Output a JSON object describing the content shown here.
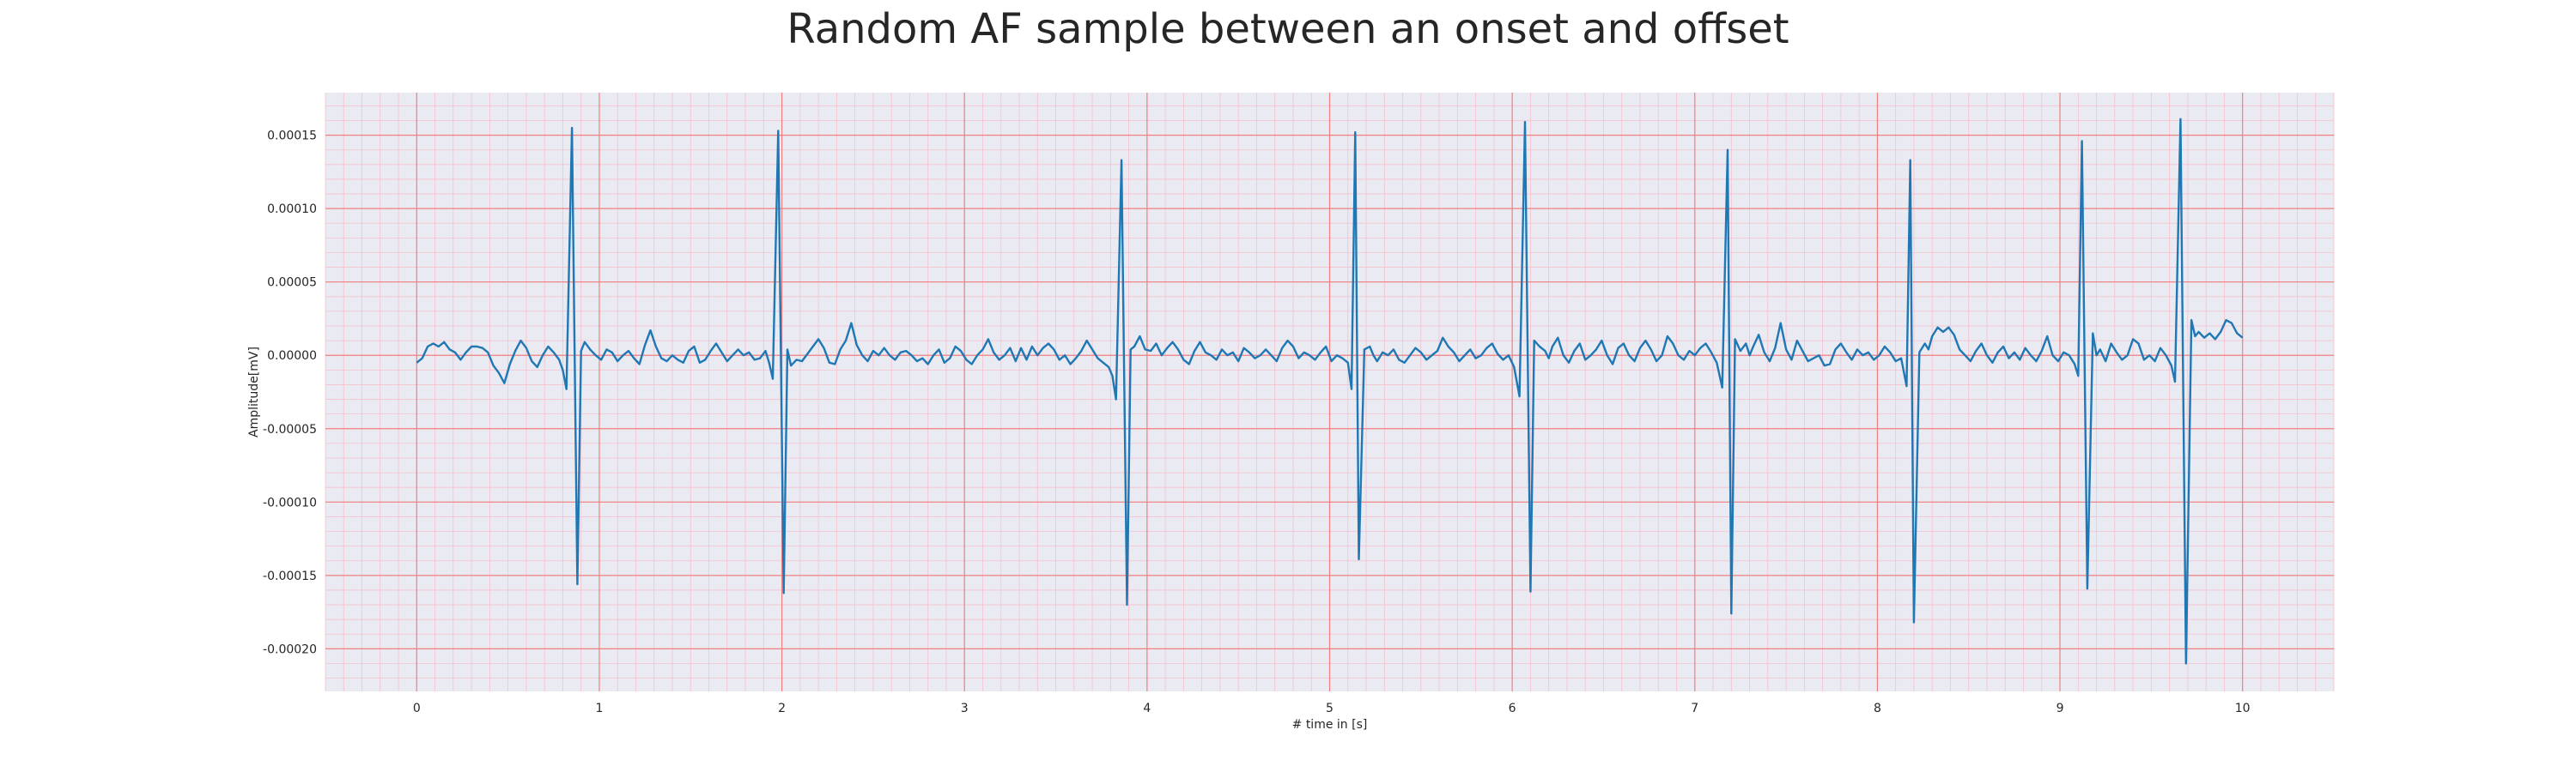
{
  "chart_data": {
    "type": "line",
    "title": "Random AF sample between an onset and offset",
    "xlabel": "# time in [s]",
    "ylabel": "Amplitude[mV]",
    "xlim": [
      -0.5,
      10.5
    ],
    "ylim": [
      -0.000229,
      0.000179
    ],
    "xticks": [
      0,
      1,
      2,
      3,
      4,
      5,
      6,
      7,
      8,
      9,
      10
    ],
    "xtick_labels": [
      "0",
      "1",
      "2",
      "3",
      "4",
      "5",
      "6",
      "7",
      "8",
      "9",
      "10"
    ],
    "yticks": [
      0.00015,
      0.0001,
      5e-05,
      0.0,
      -5e-05,
      -0.0001,
      -0.00015,
      -0.0002
    ],
    "ytick_labels": [
      "0.00015",
      "0.00010",
      "0.00005",
      "0.00000",
      "-0.00005",
      "-0.00010",
      "-0.00015",
      "-0.00020"
    ],
    "grid": true,
    "grid_major_color": "#f08080",
    "grid_minor_color": "#f6c0cc",
    "background": "#eaeaf2",
    "series_color": "#1f77b4",
    "beats": [
      {
        "t": 0.85,
        "peak": 0.000155,
        "trough": -0.000156
      },
      {
        "t": 1.98,
        "peak": 0.000153,
        "trough": -0.000162
      },
      {
        "t": 3.86,
        "peak": 0.000133,
        "trough": -0.00017
      },
      {
        "t": 5.19,
        "peak": 0.000152,
        "trough": -0.000139
      },
      {
        "t": 6.15,
        "peak": 0.000159,
        "trough": -0.000161
      },
      {
        "t": 7.25,
        "peak": 0.00014,
        "trough": -0.000176
      },
      {
        "t": 8.23,
        "peak": 0.000133,
        "trough": -0.000182
      },
      {
        "t": 9.15,
        "peak": 0.000146,
        "trough": -0.000159
      },
      {
        "t": 9.69,
        "peak": 0.000161,
        "trough": -0.00021
      }
    ],
    "series": [
      {
        "x": [
          0.0,
          0.03,
          0.06,
          0.09,
          0.12,
          0.15,
          0.18,
          0.21,
          0.24,
          0.27,
          0.3,
          0.33,
          0.36,
          0.39,
          0.42,
          0.45,
          0.48,
          0.51,
          0.54,
          0.57,
          0.6,
          0.63,
          0.66,
          0.69,
          0.72,
          0.75,
          0.78,
          0.8,
          0.82,
          0.85,
          0.88,
          0.9,
          0.92,
          0.95,
          0.98,
          1.01,
          1.04,
          1.07,
          1.1,
          1.13,
          1.16,
          1.19,
          1.22,
          1.25,
          1.28,
          1.31,
          1.34,
          1.37,
          1.4,
          1.43,
          1.46,
          1.49,
          1.52,
          1.55,
          1.58,
          1.61,
          1.64,
          1.67,
          1.7,
          1.73,
          1.76,
          1.79,
          1.82,
          1.85,
          1.88,
          1.91,
          1.93,
          1.95,
          1.98,
          2.01,
          2.03,
          2.05,
          2.08,
          2.11,
          2.14,
          2.17,
          2.2,
          2.23,
          2.26,
          2.29,
          2.32,
          2.35,
          2.38,
          2.41,
          2.44,
          2.47,
          2.5,
          2.53,
          2.56,
          2.59,
          2.62,
          2.65,
          2.68,
          2.71,
          2.74,
          2.77,
          2.8,
          2.83,
          2.86,
          2.89,
          2.92,
          2.95,
          2.98,
          3.01,
          3.04,
          3.07,
          3.1,
          3.13,
          3.16,
          3.19,
          3.22,
          3.25,
          3.28,
          3.31,
          3.34,
          3.37,
          3.4,
          3.43,
          3.46,
          3.49,
          3.52,
          3.55,
          3.58,
          3.61,
          3.64,
          3.67,
          3.7,
          3.73,
          3.76,
          3.79,
          3.81,
          3.83,
          3.86,
          3.89,
          3.91,
          3.93,
          3.96,
          3.99,
          4.02,
          4.05,
          4.08,
          4.11,
          4.14,
          4.17,
          4.2,
          4.23,
          4.26,
          4.29,
          4.32,
          4.35,
          4.38,
          4.41,
          4.44,
          4.47,
          4.5,
          4.53,
          4.56,
          4.59,
          4.62,
          4.65,
          4.68,
          4.71,
          4.74,
          4.77,
          4.8,
          4.83,
          4.86,
          4.89,
          4.92,
          4.95,
          4.98,
          5.01,
          5.04,
          5.07,
          5.1,
          5.12,
          5.14,
          5.16,
          5.19,
          5.22,
          5.24,
          5.26,
          5.29,
          5.32,
          5.35,
          5.38,
          5.41,
          5.44,
          5.47,
          5.5,
          5.53,
          5.56,
          5.59,
          5.62,
          5.65,
          5.68,
          5.71,
          5.74,
          5.77,
          5.8,
          5.83,
          5.86,
          5.89,
          5.92,
          5.95,
          5.98,
          6.01,
          6.04,
          6.07,
          6.1,
          6.12,
          6.15,
          6.18,
          6.2,
          6.22,
          6.25,
          6.28,
          6.31,
          6.34,
          6.37,
          6.4,
          6.43,
          6.46,
          6.49,
          6.52,
          6.55,
          6.58,
          6.61,
          6.64,
          6.67,
          6.7,
          6.73,
          6.76,
          6.79,
          6.82,
          6.85,
          6.88,
          6.91,
          6.94,
          6.97,
          7.0,
          7.03,
          7.06,
          7.09,
          7.12,
          7.15,
          7.18,
          7.2,
          7.22,
          7.25,
          7.28,
          7.3,
          7.32,
          7.35,
          7.38,
          7.41,
          7.44,
          7.47,
          7.5,
          7.53,
          7.56,
          7.59,
          7.62,
          7.65,
          7.68,
          7.71,
          7.74,
          7.77,
          7.8,
          7.83,
          7.86,
          7.89,
          7.92,
          7.95,
          7.98,
          8.01,
          8.04,
          8.07,
          8.1,
          8.13,
          8.16,
          8.18,
          8.2,
          8.23,
          8.26,
          8.28,
          8.3,
          8.33,
          8.36,
          8.39,
          8.42,
          8.45,
          8.48,
          8.51,
          8.54,
          8.57,
          8.6,
          8.63,
          8.66,
          8.69,
          8.72,
          8.75,
          8.78,
          8.81,
          8.84,
          8.87,
          8.9,
          8.93,
          8.96,
          8.99,
          9.02,
          9.05,
          9.08,
          9.1,
          9.12,
          9.15,
          9.18,
          9.2,
          9.22,
          9.25,
          9.28,
          9.31,
          9.34,
          9.37,
          9.4,
          9.43,
          9.46,
          9.49,
          9.52,
          9.55,
          9.58,
          9.61,
          9.63,
          9.66,
          9.69,
          9.72,
          9.74,
          9.76,
          9.79,
          9.82,
          9.85,
          9.88,
          9.91,
          9.94,
          9.97,
          10.0
        ],
        "y": [
          -5e-06,
          -2e-06,
          6e-06,
          8e-06,
          6e-06,
          9e-06,
          4e-06,
          2e-06,
          -3e-06,
          2e-06,
          6e-06,
          6e-06,
          5e-06,
          2e-06,
          -7e-06,
          -1.2e-05,
          -1.9e-05,
          -6e-06,
          3e-06,
          1e-05,
          5e-06,
          -4e-06,
          -8e-06,
          0.0,
          6e-06,
          2e-06,
          -3e-06,
          -1e-05,
          -2.3e-05,
          0.000155,
          -0.000156,
          3e-06,
          9e-06,
          4e-06,
          0.0,
          -3e-06,
          4e-06,
          2e-06,
          -4e-06,
          0.0,
          3e-06,
          -2e-06,
          -6e-06,
          7e-06,
          1.7e-05,
          6e-06,
          -2e-06,
          -4e-06,
          0.0,
          -3e-06,
          -5e-06,
          3e-06,
          6e-06,
          -5e-06,
          -3e-06,
          3e-06,
          8e-06,
          2e-06,
          -4e-06,
          0.0,
          4e-06,
          0.0,
          2e-06,
          -3e-06,
          -2e-06,
          3e-06,
          -5e-06,
          -1.6e-05,
          0.000153,
          -0.000162,
          4e-06,
          -7e-06,
          -3e-06,
          -4e-06,
          1e-06,
          6e-06,
          1.1e-05,
          5e-06,
          -5e-06,
          -6e-06,
          4e-06,
          1e-05,
          2.2e-05,
          7e-06,
          0.0,
          -4e-06,
          3e-06,
          0.0,
          5e-06,
          0.0,
          -3e-06,
          2e-06,
          3e-06,
          0.0,
          -4e-06,
          -2e-06,
          -6e-06,
          0.0,
          4e-06,
          -5e-06,
          -2e-06,
          6e-06,
          3e-06,
          -3e-06,
          -6e-06,
          0.0,
          4e-06,
          1.1e-05,
          2e-06,
          -3e-06,
          0.0,
          5e-06,
          -4e-06,
          5e-06,
          -3e-06,
          6e-06,
          0.0,
          5e-06,
          8e-06,
          4e-06,
          -3e-06,
          0.0,
          -6e-06,
          -2e-06,
          3e-06,
          1e-05,
          4e-06,
          -2e-06,
          -5e-06,
          -8e-06,
          -1.4e-05,
          -3e-05,
          0.000133,
          -0.00017,
          4e-06,
          6e-06,
          1.3e-05,
          4e-06,
          3e-06,
          8e-06,
          0.0,
          5e-06,
          9e-06,
          4e-06,
          -3e-06,
          -6e-06,
          3e-06,
          9e-06,
          2e-06,
          0.0,
          -3e-06,
          4e-06,
          0.0,
          2e-06,
          -4e-06,
          5e-06,
          2e-06,
          -2e-06,
          0.0,
          4e-06,
          0.0,
          -4e-06,
          5e-06,
          1e-05,
          6e-06,
          -2e-06,
          2e-06,
          0.0,
          -3e-06,
          2e-06,
          6e-06,
          -4e-06,
          0.0,
          -2e-06,
          -5e-06,
          -2.3e-05,
          0.000152,
          -0.000139,
          4e-06,
          6e-06,
          0.0,
          -4e-06,
          2e-06,
          0.0,
          4e-06,
          -3e-06,
          -5e-06,
          0.0,
          5e-06,
          2e-06,
          -3e-06,
          0.0,
          3e-06,
          1.2e-05,
          6e-06,
          2e-06,
          -4e-06,
          0.0,
          4e-06,
          -2e-06,
          0.0,
          5e-06,
          8e-06,
          1e-06,
          -3e-06,
          0.0,
          -8e-06,
          -2.8e-05,
          0.000159,
          -0.000161,
          1e-05,
          6e-06,
          3e-06,
          -2e-06,
          6e-06,
          1.2e-05,
          0.0,
          -5e-06,
          3e-06,
          8e-06,
          -3e-06,
          0.0,
          4e-06,
          1e-05,
          0.0,
          -6e-06,
          5e-06,
          8e-06,
          0.0,
          -4e-06,
          5e-06,
          1e-05,
          4e-06,
          -4e-06,
          0.0,
          1.3e-05,
          8e-06,
          0.0,
          -3e-06,
          3e-06,
          0.0,
          5e-06,
          8e-06,
          2e-06,
          -5e-06,
          -2.2e-05,
          0.00014,
          -0.000176,
          1.1e-05,
          3e-06,
          8e-06,
          0.0,
          6e-06,
          1.4e-05,
          2e-06,
          -4e-06,
          5e-06,
          2.2e-05,
          4e-06,
          -3e-06,
          1e-05,
          3e-06,
          -4e-06,
          -2e-06,
          0.0,
          -7e-06,
          -6e-06,
          4e-06,
          8e-06,
          2e-06,
          -3e-06,
          4e-06,
          0.0,
          2e-06,
          -3e-06,
          0.0,
          6e-06,
          2e-06,
          -4e-06,
          -2e-06,
          -2.1e-05,
          0.000133,
          -0.000182,
          2e-06,
          8e-06,
          4e-06,
          1.3e-05,
          1.9e-05,
          1.6e-05,
          1.9e-05,
          1.4e-05,
          4e-06,
          0.0,
          -4e-06,
          3e-06,
          8e-06,
          0.0,
          -5e-06,
          2e-06,
          6e-06,
          -2e-06,
          2e-06,
          -3e-06,
          5e-06,
          0.0,
          -4e-06,
          3e-06,
          1.3e-05,
          0.0,
          -4e-06,
          2e-06,
          0.0,
          -6e-06,
          -1.4e-05,
          0.000146,
          -0.000159,
          1.5e-05,
          0.0,
          4e-06,
          -4e-06,
          8e-06,
          2e-06,
          -3e-06,
          0.0,
          1.1e-05,
          8e-06,
          -3e-06,
          0.0,
          -4e-06,
          5e-06,
          0.0,
          -7e-06,
          -1.8e-05,
          0.000161,
          -0.00021,
          2.4e-05,
          1.3e-05,
          1.6e-05,
          1.2e-05,
          1.5e-05,
          1.1e-05,
          1.6e-05,
          2.4e-05,
          2.2e-05,
          1.5e-05,
          1.2e-05
        ]
      }
    ]
  }
}
